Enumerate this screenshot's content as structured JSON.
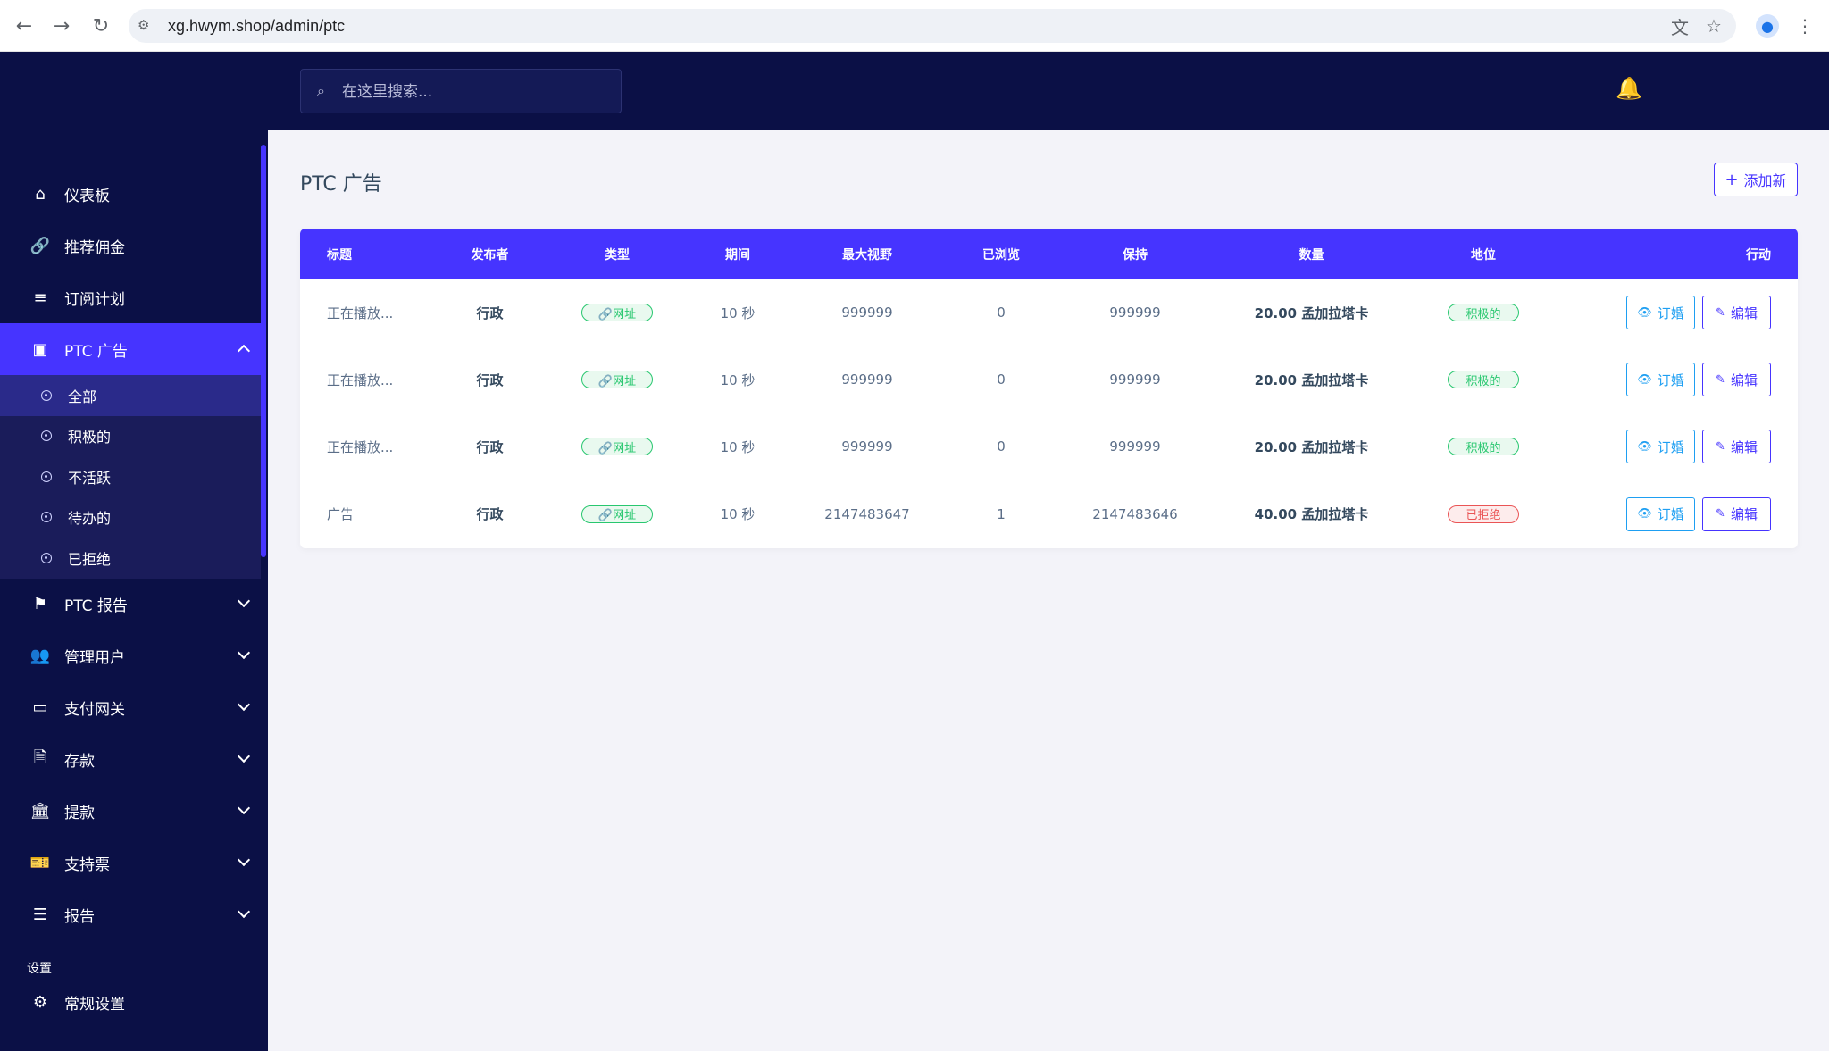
{
  "browser": {
    "url": "xg.hwym.shop/admin/ptc",
    "back_icon": "←",
    "forward_icon": "→",
    "reload_icon": "↻",
    "site_icon": "⚙",
    "translate_icon": "文",
    "star_icon": "☆",
    "profile_icon": "●",
    "menu_icon": "⋮"
  },
  "sidebar": {
    "items": [
      {
        "label": "仪表板",
        "icon": "⌂"
      },
      {
        "label": "推荐佣金",
        "icon": "🔗"
      },
      {
        "label": "订阅计划",
        "icon": "≡"
      }
    ],
    "active": {
      "label": "PTC 广告",
      "icon": "▣"
    },
    "submenu": [
      {
        "label": "全部"
      },
      {
        "label": "积极的"
      },
      {
        "label": "不活跃"
      },
      {
        "label": "待办的"
      },
      {
        "label": "已拒绝"
      }
    ],
    "items2": [
      {
        "label": "PTC 报告",
        "icon": "⚑"
      },
      {
        "label": "管理用户",
        "icon": "👥"
      },
      {
        "label": "支付网关",
        "icon": "▭"
      },
      {
        "label": "存款",
        "icon": "🗎"
      },
      {
        "label": "提款",
        "icon": "🏛"
      },
      {
        "label": "支持票",
        "icon": "🎫"
      },
      {
        "label": "报告",
        "icon": "☰"
      }
    ],
    "section": "设置",
    "settings_item": {
      "label": "常规设置",
      "icon": "⚙"
    }
  },
  "topbar": {
    "search_placeholder": "在这里搜索...",
    "search_icon": "⌕",
    "bell_icon": "🔔"
  },
  "page": {
    "title": "PTC 广告",
    "add_button": "添加新",
    "add_icon": "+"
  },
  "table": {
    "headers": [
      "标题",
      "发布者",
      "类型",
      "期间",
      "最大视野",
      "已浏览",
      "保持",
      "数量",
      "地位",
      "行动"
    ],
    "rows": [
      {
        "title": "正在播放...",
        "publisher": "行政",
        "type": "🔗网址",
        "duration": "10 秒",
        "max_views": "999999",
        "viewed": "0",
        "remain": "999999",
        "amount": "20.00 孟加拉塔卡",
        "status": "积极的",
        "status_kind": "ok"
      },
      {
        "title": "正在播放...",
        "publisher": "行政",
        "type": "🔗网址",
        "duration": "10 秒",
        "max_views": "999999",
        "viewed": "0",
        "remain": "999999",
        "amount": "20.00 孟加拉塔卡",
        "status": "积极的",
        "status_kind": "ok"
      },
      {
        "title": "正在播放...",
        "publisher": "行政",
        "type": "🔗网址",
        "duration": "10 秒",
        "max_views": "999999",
        "viewed": "0",
        "remain": "999999",
        "amount": "20.00 孟加拉塔卡",
        "status": "积极的",
        "status_kind": "ok"
      },
      {
        "title": "广告",
        "publisher": "行政",
        "type": "🔗网址",
        "duration": "10 秒",
        "max_views": "2147483647",
        "viewed": "1",
        "remain": "2147483646",
        "amount": "40.00 孟加拉塔卡",
        "status": "已拒绝",
        "status_kind": "rej"
      }
    ],
    "view_label": "订婚",
    "view_icon": "👁",
    "edit_label": "编辑",
    "edit_icon": "✎"
  },
  "colors": {
    "sidebar_bg": "#0b1046",
    "accent": "#4634ff",
    "success": "#28c76f",
    "danger": "#ea5455",
    "info": "#1e9ff2"
  }
}
